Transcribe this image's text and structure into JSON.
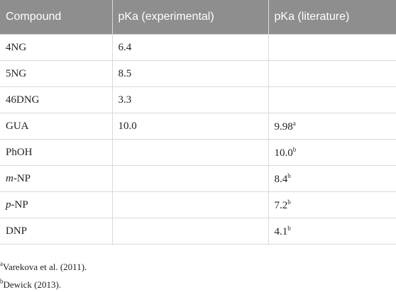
{
  "table": {
    "header": [
      "Compound",
      "pKa (experimental)",
      "pKa (literature)"
    ],
    "rows": [
      {
        "compound": "4NG",
        "experimental": "6.4"
      },
      {
        "compound": "5NG",
        "experimental": "8.5"
      },
      {
        "compound": "46DNG",
        "experimental": "3.3"
      },
      {
        "compound": "GUA",
        "experimental": "10.0",
        "literature": "9.98",
        "note": "a"
      },
      {
        "compound": "PhOH",
        "literature": "10.0",
        "note": "b"
      },
      {
        "compound_italic": "m",
        "compound": "-NP",
        "literature": "8.4",
        "note": "b"
      },
      {
        "compound_italic": "p",
        "compound": "-NP",
        "literature": "7.2",
        "note": "b"
      },
      {
        "compound": "DNP",
        "literature": "4.1",
        "note": "b"
      }
    ]
  },
  "footnotes": [
    {
      "mark": "a",
      "text": "Varekova et al. (2011)."
    },
    {
      "mark": "b",
      "text": "Dewick (2013)."
    }
  ]
}
